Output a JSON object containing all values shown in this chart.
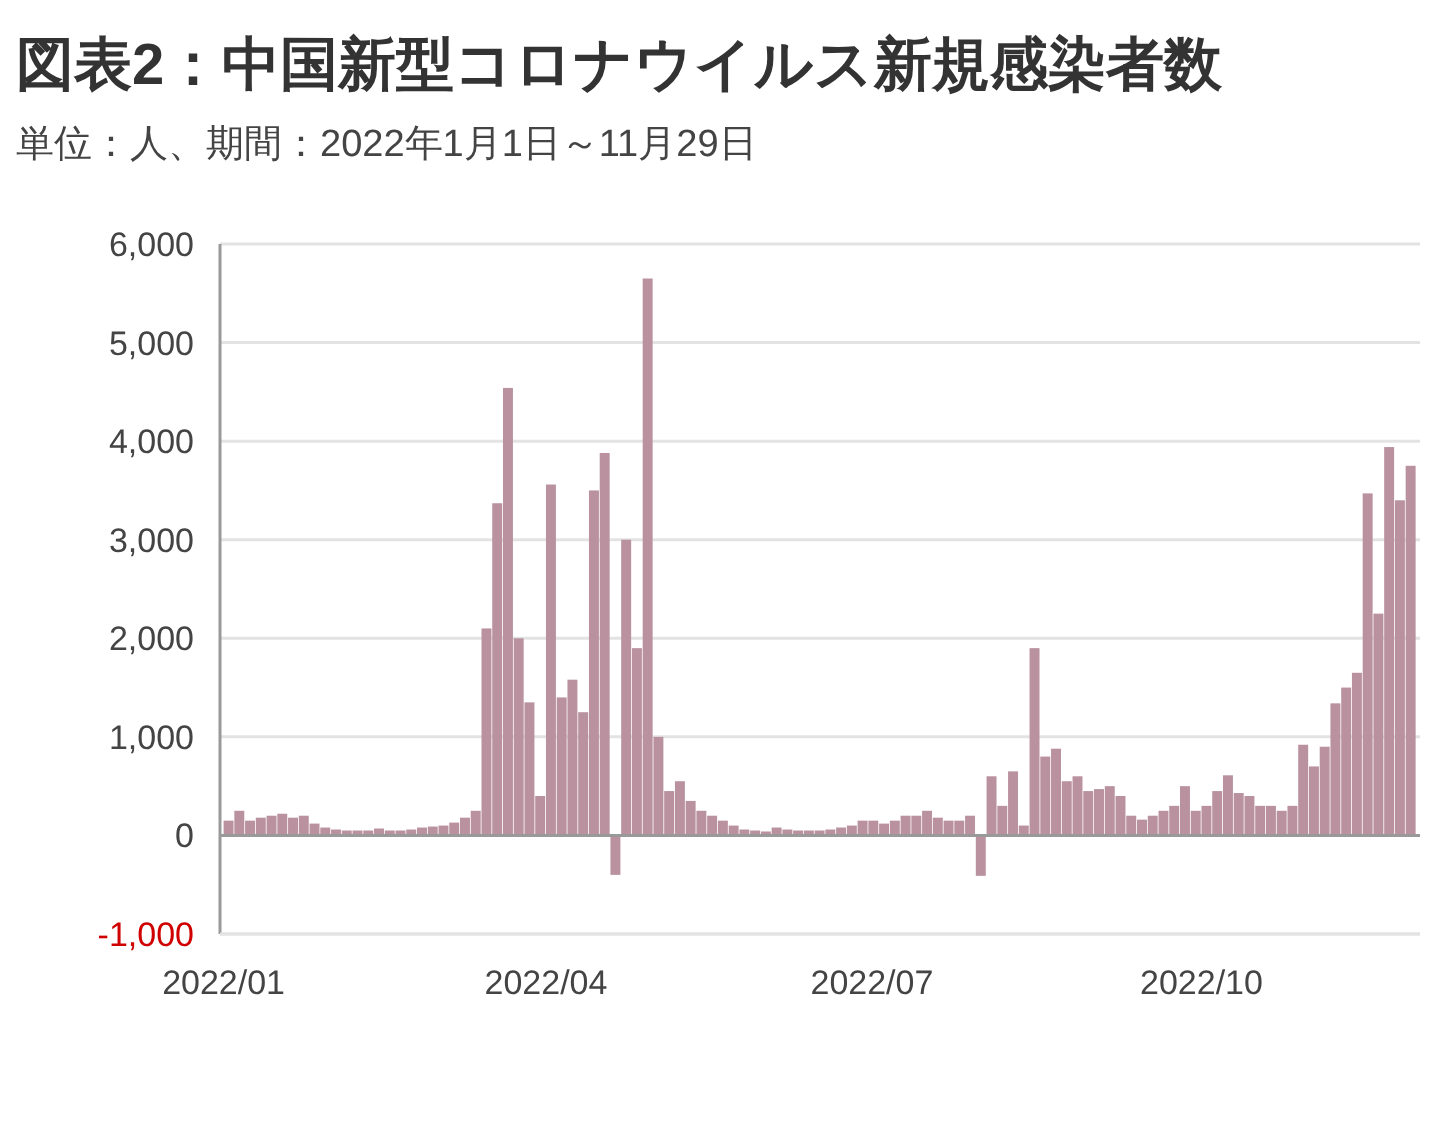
{
  "chart_data": {
    "type": "bar",
    "title": "図表2：中国新型コロナウイルス新規感染者数",
    "subtitle": "単位：人、期間：2022年1月1日～11月29日",
    "x": [
      "2022-01-01",
      "2022-01-04",
      "2022-01-07",
      "2022-01-10",
      "2022-01-13",
      "2022-01-16",
      "2022-01-19",
      "2022-01-22",
      "2022-01-25",
      "2022-01-28",
      "2022-01-31",
      "2022-02-03",
      "2022-02-06",
      "2022-02-09",
      "2022-02-12",
      "2022-02-15",
      "2022-02-18",
      "2022-02-21",
      "2022-02-24",
      "2022-02-27",
      "2022-03-02",
      "2022-03-05",
      "2022-03-08",
      "2022-03-11",
      "2022-03-14",
      "2022-03-17",
      "2022-03-20",
      "2022-03-23",
      "2022-03-26",
      "2022-03-29",
      "2022-04-01",
      "2022-04-04",
      "2022-04-07",
      "2022-04-10",
      "2022-04-13",
      "2022-04-16",
      "2022-04-19",
      "2022-04-22",
      "2022-04-25",
      "2022-04-28",
      "2022-05-01",
      "2022-05-04",
      "2022-05-07",
      "2022-05-10",
      "2022-05-13",
      "2022-05-16",
      "2022-05-19",
      "2022-05-22",
      "2022-05-25",
      "2022-05-28",
      "2022-05-31",
      "2022-06-03",
      "2022-06-06",
      "2022-06-09",
      "2022-06-12",
      "2022-06-15",
      "2022-06-18",
      "2022-06-21",
      "2022-06-24",
      "2022-06-27",
      "2022-06-30",
      "2022-07-03",
      "2022-07-06",
      "2022-07-09",
      "2022-07-12",
      "2022-07-15",
      "2022-07-18",
      "2022-07-21",
      "2022-07-24",
      "2022-07-27",
      "2022-07-30",
      "2022-08-02",
      "2022-08-05",
      "2022-08-08",
      "2022-08-11",
      "2022-08-14",
      "2022-08-17",
      "2022-08-20",
      "2022-08-23",
      "2022-08-26",
      "2022-08-29",
      "2022-09-01",
      "2022-09-04",
      "2022-09-07",
      "2022-09-10",
      "2022-09-13",
      "2022-09-16",
      "2022-09-19",
      "2022-09-22",
      "2022-09-25",
      "2022-09-28",
      "2022-10-01",
      "2022-10-04",
      "2022-10-07",
      "2022-10-10",
      "2022-10-13",
      "2022-10-16",
      "2022-10-19",
      "2022-10-22",
      "2022-10-25",
      "2022-10-28",
      "2022-10-31",
      "2022-11-03",
      "2022-11-06",
      "2022-11-09",
      "2022-11-12",
      "2022-11-15",
      "2022-11-18",
      "2022-11-21",
      "2022-11-24",
      "2022-11-27"
    ],
    "color": "#b9919f",
    "values": [
      150,
      250,
      150,
      180,
      200,
      220,
      180,
      200,
      120,
      80,
      60,
      50,
      50,
      50,
      70,
      50,
      50,
      60,
      80,
      90,
      100,
      130,
      180,
      250,
      2100,
      3370,
      4540,
      2000,
      1350,
      400,
      3560,
      1400,
      1580,
      1250,
      3500,
      3880,
      -400,
      3000,
      1900,
      5650,
      1000,
      450,
      550,
      350,
      250,
      200,
      150,
      100,
      60,
      50,
      40,
      80,
      60,
      50,
      50,
      50,
      60,
      80,
      100,
      150,
      150,
      120,
      150,
      200,
      200,
      250,
      180,
      150,
      150,
      200,
      -410,
      600,
      300,
      650,
      100,
      1900,
      800,
      880,
      550,
      600,
      450,
      470,
      500,
      400,
      200,
      160,
      200,
      250,
      300,
      500,
      250,
      300,
      450,
      610,
      430,
      400,
      300,
      300,
      250,
      300,
      920,
      700,
      900,
      1340,
      1500,
      1650,
      3470,
      2250,
      3940,
      3400,
      3750
    ],
    "xlim": [
      "2021-12-31",
      "2022-12-01"
    ],
    "xticks": [
      {
        "value": "2022-01-01",
        "label": "2022/01"
      },
      {
        "value": "2022-04-01",
        "label": "2022/04"
      },
      {
        "value": "2022-07-01",
        "label": "2022/07"
      },
      {
        "value": "2022-10-01",
        "label": "2022/10"
      }
    ],
    "ylim": [
      -1000,
      6000
    ],
    "yticks": [
      {
        "value": -1000,
        "label": "-1,000"
      },
      {
        "value": 0,
        "label": "0"
      },
      {
        "value": 1000,
        "label": "1,000"
      },
      {
        "value": 2000,
        "label": "2,000"
      },
      {
        "value": 3000,
        "label": "3,000"
      },
      {
        "value": 4000,
        "label": "4,000"
      },
      {
        "value": 5000,
        "label": "5,000"
      },
      {
        "value": 6000,
        "label": "6,000"
      }
    ],
    "grid": "y"
  }
}
